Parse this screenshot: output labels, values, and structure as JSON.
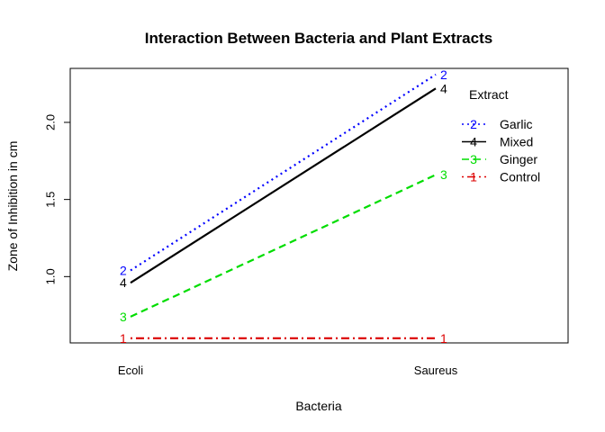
{
  "chart_data": {
    "type": "line",
    "title": "Interaction Between Bacteria and Plant Extracts",
    "xlabel": "Bacteria",
    "ylabel": "Zone of Inhibition in cm",
    "categories": [
      "Ecoli",
      "Saureus"
    ],
    "yticks": [
      "1.0",
      "1.5",
      "2.0"
    ],
    "ylim": [
      0.57,
      2.35
    ],
    "legend_title": "Extract",
    "legend_position": "top-right",
    "grid": false,
    "series": [
      {
        "name": "Garlic",
        "values": [
          1.04,
          2.31
        ],
        "color": "#0000ff",
        "symbol": "2",
        "linestyle": "dotted"
      },
      {
        "name": "Mixed",
        "values": [
          0.96,
          2.22
        ],
        "color": "#000000",
        "symbol": "4",
        "linestyle": "solid"
      },
      {
        "name": "Ginger",
        "values": [
          0.74,
          1.66
        ],
        "color": "#00dd00",
        "symbol": "3",
        "linestyle": "dashed"
      },
      {
        "name": "Control",
        "values": [
          0.6,
          0.6
        ],
        "color": "#dd0000",
        "symbol": "1",
        "linestyle": "dotdash"
      }
    ]
  }
}
